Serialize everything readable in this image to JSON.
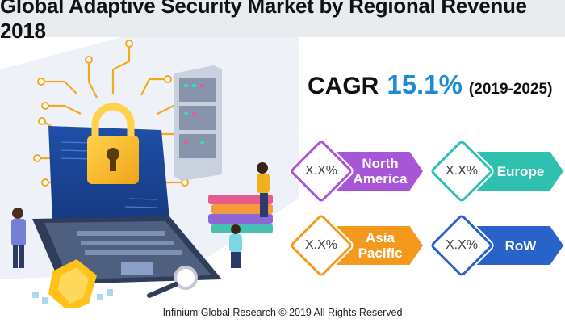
{
  "title": "Global Adaptive Security Market by Regional Revenue 2018",
  "cagr": {
    "label": "CAGR",
    "value": "15.1%",
    "period": "(2019-2025)"
  },
  "regions": [
    {
      "name": "North America",
      "value": "X.X%",
      "color": "#a855d8"
    },
    {
      "name": "Europe",
      "value": "X.X%",
      "color": "#2fc0b0"
    },
    {
      "name": "Asia Pacific",
      "value": "X.X%",
      "color": "#f39a1e"
    },
    {
      "name": "RoW",
      "value": "X.X%",
      "color": "#2962c8"
    }
  ],
  "footer": "Infinium Global Research © 2019 All Rights Reserved",
  "illustration": {
    "icons": [
      "padlock-icon",
      "server-rack-icon",
      "shield-icon",
      "magnifier-icon",
      "circuit-icon",
      "person-icon"
    ]
  }
}
